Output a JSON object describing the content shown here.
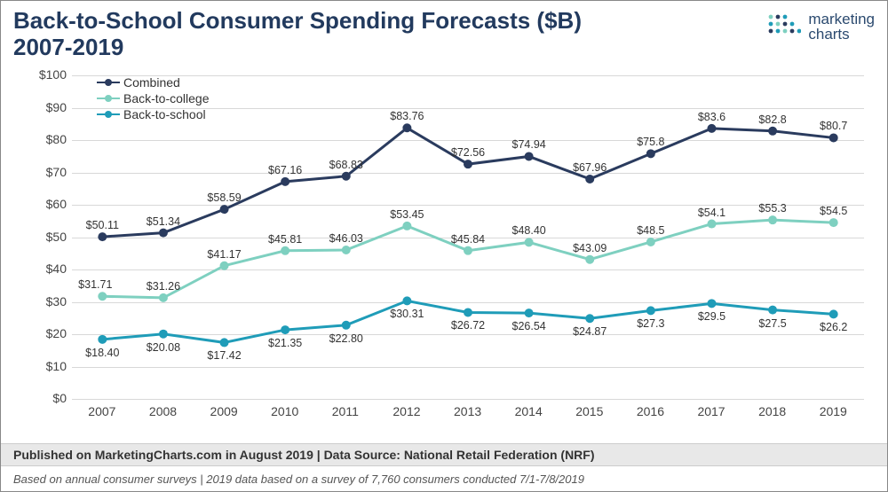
{
  "title_line1": "Back-to-School Consumer Spending Forecasts ($B)",
  "title_line2": "2007-2019",
  "logo_text1": "marketing",
  "logo_text2": "charts",
  "footer1": "Published on MarketingCharts.com in August 2019 | Data Source: National Retail Federation (NRF)",
  "footer2": "Based on annual consumer surveys | 2019 data based on a survey of 7,760 consumers conducted 7/1-7/8/2019",
  "chart": {
    "type": "line",
    "colors": {
      "combined": "#2a3b5e",
      "college": "#7ed0c0",
      "school": "#1f9cb8",
      "grid": "#d8d8d8",
      "bg": "#ffffff"
    },
    "ylim": [
      0,
      100
    ],
    "ytick_step": 10,
    "ytick_prefix": "$",
    "categories": [
      "2007",
      "2008",
      "2009",
      "2010",
      "2011",
      "2012",
      "2013",
      "2014",
      "2015",
      "2016",
      "2017",
      "2018",
      "2019"
    ],
    "legend": [
      {
        "key": "combined",
        "label": "Combined"
      },
      {
        "key": "college",
        "label": "Back-to-college"
      },
      {
        "key": "school",
        "label": "Back-to-school"
      }
    ],
    "series": {
      "combined": [
        {
          "v": 50.11,
          "l": "$50.11"
        },
        {
          "v": 51.34,
          "l": "$51.34"
        },
        {
          "v": 58.59,
          "l": "$58.59"
        },
        {
          "v": 67.16,
          "l": "$67.16"
        },
        {
          "v": 68.83,
          "l": "$68.83"
        },
        {
          "v": 83.76,
          "l": "$83.76"
        },
        {
          "v": 72.56,
          "l": "$72.56"
        },
        {
          "v": 74.94,
          "l": "$74.94"
        },
        {
          "v": 67.96,
          "l": "$67.96"
        },
        {
          "v": 75.8,
          "l": "$75.8"
        },
        {
          "v": 83.6,
          "l": "$83.6"
        },
        {
          "v": 82.8,
          "l": "$82.8"
        },
        {
          "v": 80.7,
          "l": "$80.7"
        }
      ],
      "college": [
        {
          "v": 31.71,
          "l": "$31.71"
        },
        {
          "v": 31.26,
          "l": "$31.26"
        },
        {
          "v": 41.17,
          "l": "$41.17"
        },
        {
          "v": 45.81,
          "l": "$45.81"
        },
        {
          "v": 46.03,
          "l": "$46.03"
        },
        {
          "v": 53.45,
          "l": "$53.45"
        },
        {
          "v": 45.84,
          "l": "$45.84"
        },
        {
          "v": 48.4,
          "l": "$48.40"
        },
        {
          "v": 43.09,
          "l": "$43.09"
        },
        {
          "v": 48.5,
          "l": "$48.5"
        },
        {
          "v": 54.1,
          "l": "$54.1"
        },
        {
          "v": 55.3,
          "l": "$55.3"
        },
        {
          "v": 54.5,
          "l": "$54.5"
        }
      ],
      "school": [
        {
          "v": 18.4,
          "l": "$18.40"
        },
        {
          "v": 20.08,
          "l": "$20.08"
        },
        {
          "v": 17.42,
          "l": "$17.42"
        },
        {
          "v": 21.35,
          "l": "$21.35"
        },
        {
          "v": 22.8,
          "l": "$22.80"
        },
        {
          "v": 30.31,
          "l": "$30.31"
        },
        {
          "v": 26.72,
          "l": "$26.72"
        },
        {
          "v": 26.54,
          "l": "$26.54"
        },
        {
          "v": 24.87,
          "l": "$24.87"
        },
        {
          "v": 27.3,
          "l": "$27.3"
        },
        {
          "v": 29.5,
          "l": "$29.5"
        },
        {
          "v": 27.5,
          "l": "$27.5"
        },
        {
          "v": 26.2,
          "l": "$26.2"
        }
      ]
    },
    "label_pos": {
      "combined": "above",
      "college": "above",
      "school": "below"
    },
    "label_override": {
      "college": {
        "0": "above-left"
      }
    },
    "marker_radius": 5,
    "line_width": 3,
    "title_fontsize": 26,
    "label_fontsize": 12.5,
    "axis_fontsize": 14
  }
}
